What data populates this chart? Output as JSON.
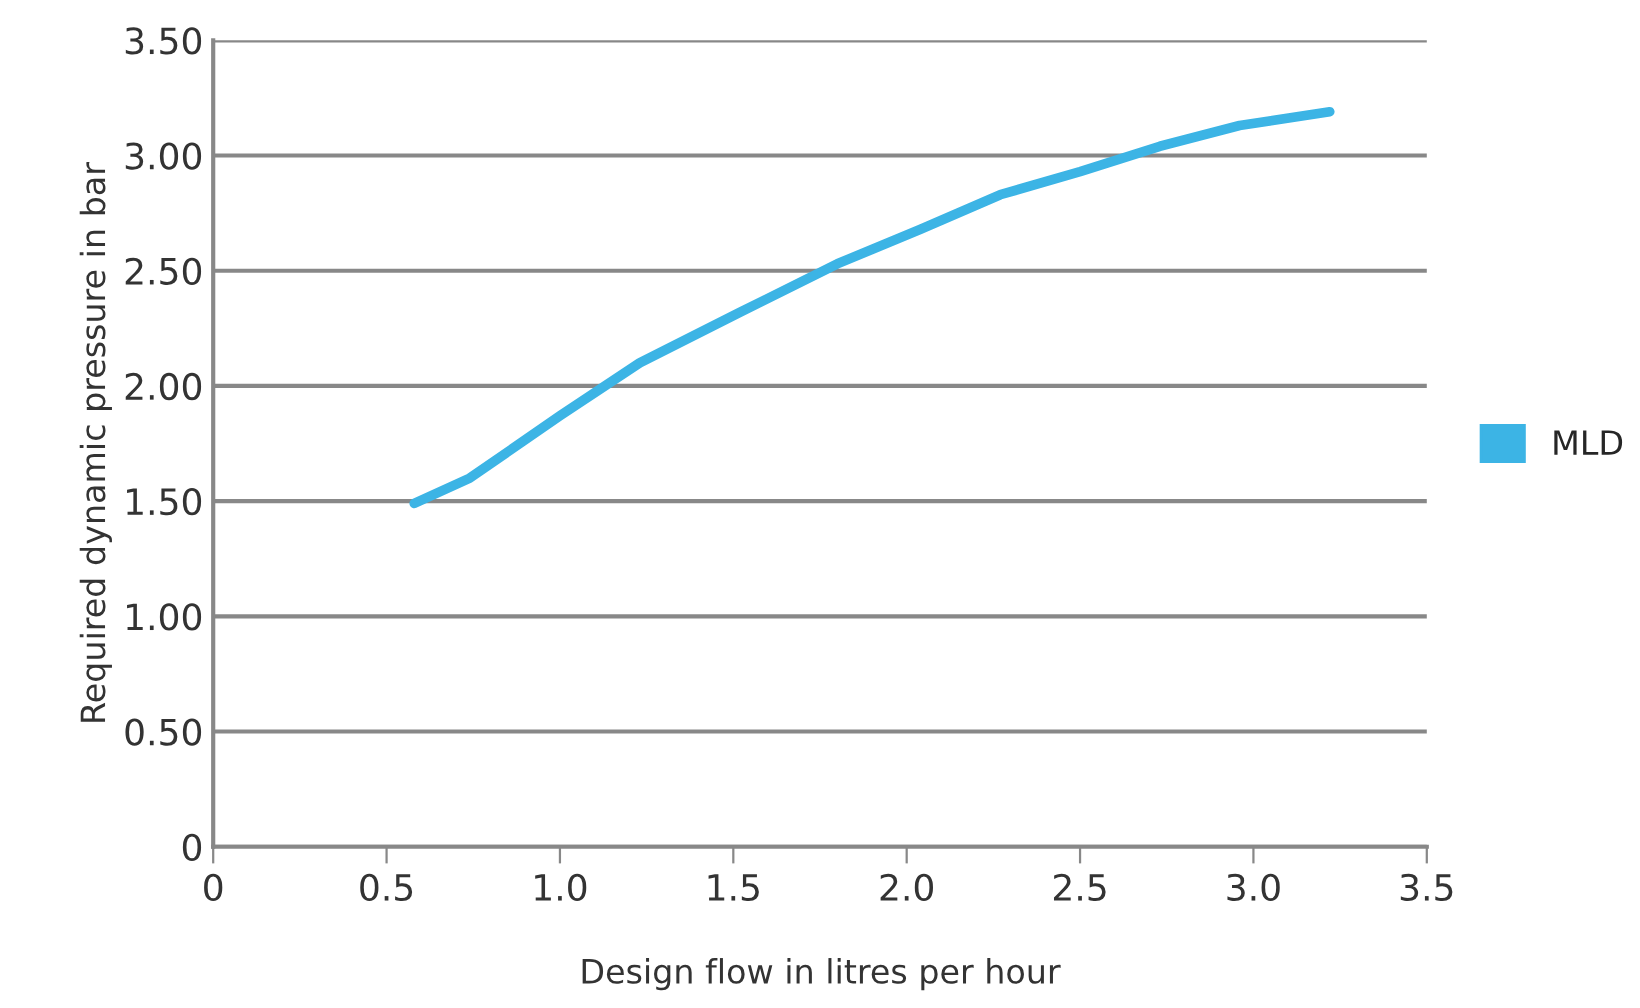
{
  "chart_data": {
    "type": "line",
    "xlabel": "Design flow in litres per hour",
    "ylabel": "Required dynamic pressure in bar",
    "series": [
      {
        "name": "MLD",
        "color": "#3cb4e5",
        "x": [
          0.58,
          0.74,
          1.0,
          1.23,
          1.52,
          1.8,
          2.04,
          2.27,
          2.5,
          2.73,
          2.96,
          3.22
        ],
        "values": [
          1.49,
          1.6,
          1.87,
          2.1,
          2.32,
          2.53,
          2.68,
          2.83,
          2.93,
          3.04,
          3.13,
          3.19
        ]
      }
    ],
    "xlim": [
      0,
      3.5
    ],
    "xticks": [
      0,
      0.5,
      {
        "value": 1,
        "label": "1.0"
      },
      1.5,
      {
        "value": 2,
        "label": "2.0"
      },
      2.5,
      {
        "value": 3,
        "label": "3.0"
      },
      3.5
    ],
    "ylim": [
      0,
      3.5
    ],
    "yticks": [
      0,
      {
        "value": 0.5,
        "label": "0.50"
      },
      {
        "value": 1,
        "label": "1.00"
      },
      {
        "value": 1.5,
        "label": "1.50"
      },
      {
        "value": 2,
        "label": "2.00"
      },
      {
        "value": 2.5,
        "label": "2.50"
      },
      {
        "value": 3,
        "label": "3.00"
      },
      {
        "value": 3.5,
        "label": "3.50"
      }
    ],
    "grid": "y",
    "legend": "right",
    "marker": "none",
    "line_style": "solid"
  }
}
